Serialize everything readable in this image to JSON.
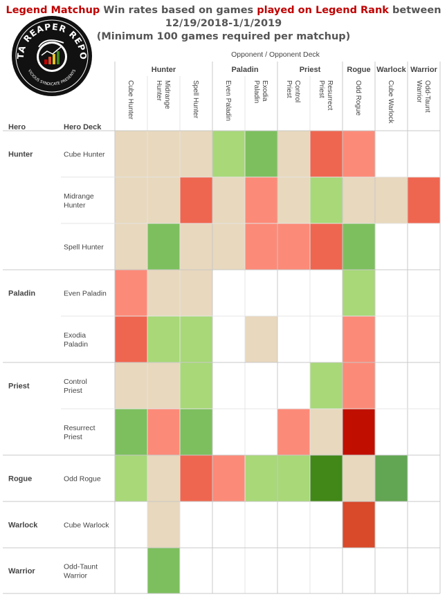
{
  "title": {
    "p1_red": "Legend Matchup",
    "p1_text": " Win rates based on games ",
    "p1_red2": "played on Legend Rank",
    "p1_text2": "  between",
    "line2": "12/19/2018-1/1/2019",
    "line3": "(Minimum 100 games required per matchup)"
  },
  "logo": {
    "text_top": "DATA REAPER REPORT",
    "text_bottom": "VICIOUS SYNDICATE PRESENTS"
  },
  "labels": {
    "opponent_header": "Opponent  /  Opponent Deck",
    "hero_col": "Hero",
    "hero_deck_col": "Hero Deck"
  },
  "colors": {
    "strong_loss": "#c00f00",
    "loss2": "#d84a2a",
    "loss": "#ef6650",
    "slight_loss": "#fc8a78",
    "even": "#e8d8bd",
    "slight_win": "#a8d878",
    "win": "#7dbf5e",
    "win2": "#62a552",
    "strong_win": "#418818",
    "empty": "#ffffff",
    "gridline": "#e4e4e4",
    "groupline": "#c8c8c8"
  },
  "chart_data": {
    "type": "heatmap",
    "title": "Legend Matchup Win rates based on games played on Legend Rank between 12/19/2018-1/1/2019 (Minimum 100 games required per matchup)",
    "xlabel": "Opponent / Opponent Deck",
    "ylabel": "Hero / Hero Deck",
    "legend": "none",
    "opponent_classes": [
      {
        "name": "Hunter",
        "span": 3
      },
      {
        "name": "Paladin",
        "span": 2
      },
      {
        "name": "Priest",
        "span": 2
      },
      {
        "name": "Rogue",
        "span": 1
      },
      {
        "name": "Warlock",
        "span": 1
      },
      {
        "name": "Warrior",
        "span": 1
      }
    ],
    "columns": [
      "Cube Hunter",
      "Midrange Hunter",
      "Spell Hunter",
      "Even Paladin",
      "Exodia Paladin",
      "Control Priest",
      "Resurrect Priest",
      "Odd Rogue",
      "Cube Warlock",
      "Odd-Taunt Warrior"
    ],
    "hero_classes": [
      {
        "name": "Hunter",
        "span": 3
      },
      {
        "name": "Paladin",
        "span": 2
      },
      {
        "name": "Priest",
        "span": 2
      },
      {
        "name": "Rogue",
        "span": 1
      },
      {
        "name": "Warlock",
        "span": 1
      },
      {
        "name": "Warrior",
        "span": 1
      }
    ],
    "rows": [
      "Cube Hunter",
      "Midrange Hunter",
      "Spell Hunter",
      "Even Paladin",
      "Exodia Paladin",
      "Control Priest",
      "Resurrect Priest",
      "Odd Rogue",
      "Cube Warlock",
      "Odd-Taunt Warrior"
    ],
    "cells": [
      [
        "even",
        "even",
        "even",
        "slight_win",
        "win",
        "even",
        "loss",
        "slight_loss",
        null,
        null
      ],
      [
        "even",
        "even",
        "loss",
        "even",
        "slight_loss",
        "even",
        "slight_win",
        "even",
        "even",
        "loss"
      ],
      [
        "even",
        "win",
        "even",
        "even",
        "slight_loss",
        "slight_loss",
        "loss",
        "win",
        null,
        null
      ],
      [
        "slight_loss",
        "even",
        "even",
        null,
        null,
        null,
        null,
        "slight_win",
        null,
        null
      ],
      [
        "loss",
        "slight_win",
        "slight_win",
        null,
        "even",
        null,
        null,
        "slight_loss",
        null,
        null
      ],
      [
        "even",
        "even",
        "slight_win",
        null,
        null,
        null,
        "slight_win",
        "slight_loss",
        null,
        null
      ],
      [
        "win",
        "slight_loss",
        "win",
        null,
        null,
        "slight_loss",
        "even",
        "strong_loss",
        null,
        null
      ],
      [
        "slight_win",
        "even",
        "loss",
        "slight_loss",
        "slight_win",
        "slight_win",
        "strong_win",
        "even",
        "win2",
        null
      ],
      [
        null,
        "even",
        null,
        null,
        null,
        null,
        null,
        "loss2",
        null,
        null
      ],
      [
        null,
        "win",
        null,
        null,
        null,
        null,
        null,
        null,
        null,
        null
      ]
    ]
  }
}
